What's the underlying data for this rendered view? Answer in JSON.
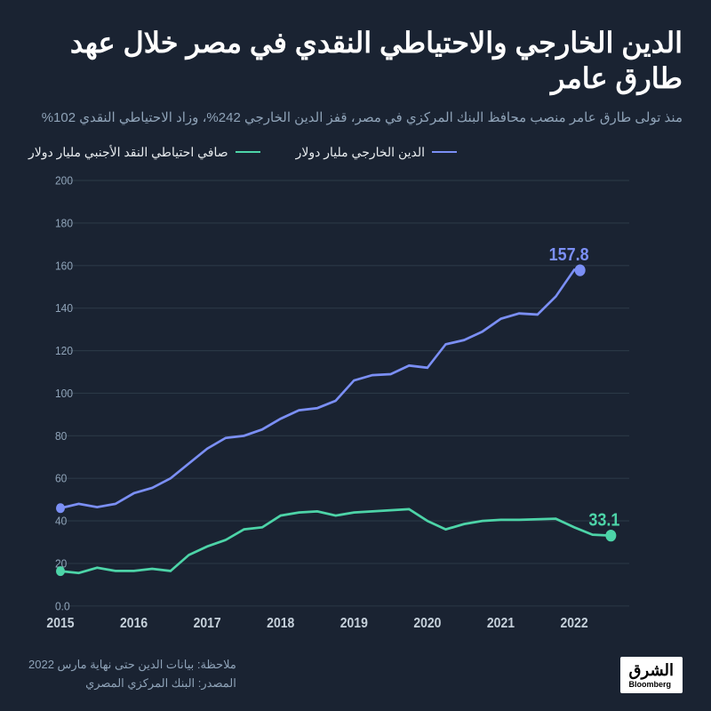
{
  "title": "الدين الخارجي والاحتياطي النقدي في مصر خلال عهد طارق عامر",
  "subtitle": "منذ تولى طارق عامر منصب محافظ البنك المركزي في مصر، قفز الدين الخارجي 242%، وزاد الاحتياطي النقدي 102%",
  "legend": {
    "series1": {
      "label": "صافي احتياطي النقد الأجنبي مليار دولار",
      "color": "#4dd4a8"
    },
    "series2": {
      "label": "الدين الخارجي مليار دولار",
      "color": "#7b8ff5"
    }
  },
  "chart": {
    "type": "line",
    "background": "#1a2332",
    "grid_color": "#2a3846",
    "axis_label_color": "#8fa3b8",
    "x_axis_label_color": "#c5d0da",
    "ylim": [
      0,
      200
    ],
    "ytick_step": 20,
    "yticks": [
      0.0,
      20,
      40,
      60,
      80,
      100,
      120,
      140,
      160,
      180,
      200
    ],
    "x_labels": [
      "2015",
      "2016",
      "2017",
      "2018",
      "2019",
      "2020",
      "2021",
      "2022"
    ],
    "x_domain": [
      2015.0,
      2022.75
    ],
    "series": [
      {
        "id": "reserves",
        "color": "#4dd4a8",
        "line_width": 2.5,
        "end_value": 33.1,
        "end_label": "33.1",
        "end_dot_radius": 6,
        "points": [
          [
            2015.0,
            16.4
          ],
          [
            2015.25,
            15.5
          ],
          [
            2015.5,
            18.0
          ],
          [
            2015.75,
            16.5
          ],
          [
            2016.0,
            16.5
          ],
          [
            2016.25,
            17.5
          ],
          [
            2016.5,
            16.5
          ],
          [
            2016.75,
            24.0
          ],
          [
            2017.0,
            28.0
          ],
          [
            2017.25,
            31.0
          ],
          [
            2017.5,
            36.0
          ],
          [
            2017.75,
            37.0
          ],
          [
            2018.0,
            42.5
          ],
          [
            2018.25,
            44.0
          ],
          [
            2018.5,
            44.5
          ],
          [
            2018.75,
            42.5
          ],
          [
            2019.0,
            44.0
          ],
          [
            2019.25,
            44.5
          ],
          [
            2019.5,
            45.0
          ],
          [
            2019.75,
            45.5
          ],
          [
            2020.0,
            40.0
          ],
          [
            2020.25,
            36.0
          ],
          [
            2020.5,
            38.5
          ],
          [
            2020.75,
            40.0
          ],
          [
            2021.0,
            40.5
          ],
          [
            2021.25,
            40.5
          ],
          [
            2021.5,
            40.8
          ],
          [
            2021.75,
            41.0
          ],
          [
            2022.0,
            37.0
          ],
          [
            2022.25,
            33.5
          ],
          [
            2022.5,
            33.1
          ]
        ]
      },
      {
        "id": "debt",
        "color": "#7b8ff5",
        "line_width": 2.5,
        "end_value": 157.8,
        "end_label": "157.8",
        "end_dot_radius": 6,
        "points": [
          [
            2015.0,
            46.0
          ],
          [
            2015.25,
            48.0
          ],
          [
            2015.5,
            46.5
          ],
          [
            2015.75,
            48.0
          ],
          [
            2016.0,
            53.0
          ],
          [
            2016.25,
            55.5
          ],
          [
            2016.5,
            60.0
          ],
          [
            2016.75,
            67.0
          ],
          [
            2017.0,
            74.0
          ],
          [
            2017.25,
            79.0
          ],
          [
            2017.5,
            80.0
          ],
          [
            2017.75,
            83.0
          ],
          [
            2018.0,
            88.0
          ],
          [
            2018.25,
            92.0
          ],
          [
            2018.5,
            93.0
          ],
          [
            2018.75,
            96.5
          ],
          [
            2019.0,
            106.0
          ],
          [
            2019.25,
            108.5
          ],
          [
            2019.5,
            109.0
          ],
          [
            2019.75,
            113.0
          ],
          [
            2020.0,
            112.0
          ],
          [
            2020.25,
            123.0
          ],
          [
            2020.5,
            125.0
          ],
          [
            2020.75,
            129.0
          ],
          [
            2021.0,
            135.0
          ],
          [
            2021.25,
            137.5
          ],
          [
            2021.5,
            137.0
          ],
          [
            2021.75,
            145.5
          ],
          [
            2022.0,
            158.0
          ],
          [
            2022.08,
            157.8
          ]
        ]
      }
    ]
  },
  "footer": {
    "note": "ملاحظة: بيانات الدين حتى نهاية مارس 2022",
    "source": "المصدر: البنك المركزي المصري",
    "logo_main": "الشرق",
    "logo_sub": "Bloomberg"
  }
}
